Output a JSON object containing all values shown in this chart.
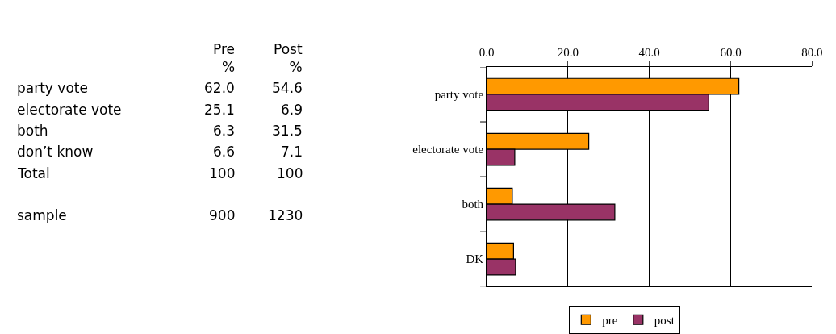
{
  "chart_data": [
    {
      "type": "other",
      "categories": [
        "party vote",
        "electorate vote",
        "both",
        "don’t know",
        "Total",
        null,
        "sample"
      ],
      "series": [
        {
          "name": "Pre %",
          "values": [
            62.0,
            25.1,
            6.3,
            6.6,
            100,
            null,
            900
          ],
          "value_labels": [
            "62.0",
            "25.1",
            "6.3",
            "6.6",
            "100",
            null,
            "900"
          ]
        },
        {
          "name": "Post %",
          "values": [
            54.6,
            6.9,
            31.5,
            7.1,
            100,
            null,
            1230
          ],
          "value_labels": [
            "54.6",
            "6.9",
            "31.5",
            "7.1",
            "100",
            null,
            "1230"
          ]
        }
      ]
    },
    {
      "type": "bar",
      "orientation": "horizontal",
      "categories": [
        "party vote",
        "electorate vote",
        "both",
        "DK"
      ],
      "series": [
        {
          "name": "pre",
          "color": "#ff9900",
          "values": [
            62.0,
            25.1,
            6.3,
            6.6
          ]
        },
        {
          "name": "post",
          "color": "#993366",
          "values": [
            54.6,
            6.9,
            31.5,
            7.1
          ]
        }
      ],
      "xlim": [
        0,
        80
      ],
      "xticks": [
        {
          "value": 0,
          "label": "0.0"
        },
        {
          "value": 20,
          "label": "20.0"
        },
        {
          "value": 40,
          "label": "40.0"
        },
        {
          "value": 60,
          "label": "60.0"
        },
        {
          "value": 80,
          "label": "80.0"
        }
      ],
      "grid": "x",
      "legend": "bottom"
    }
  ]
}
